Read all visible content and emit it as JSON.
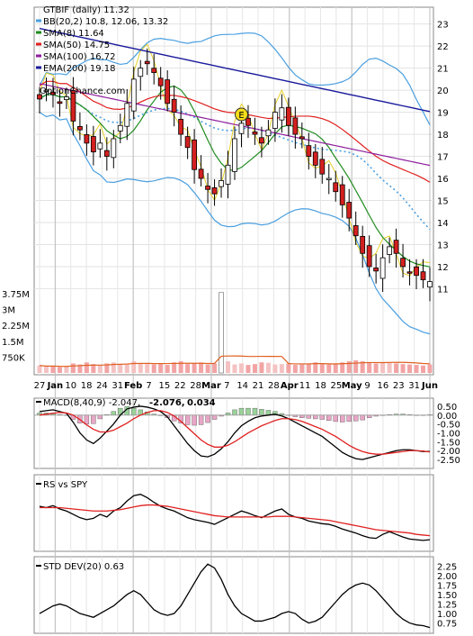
{
  "chart_data": [
    {
      "type": "candlestick",
      "title": "GTBIF (daily) 11.32",
      "watermark": "OptionChance.com",
      "y_ticks": [
        11,
        12,
        13,
        14,
        15,
        16,
        17,
        18,
        19,
        20,
        21,
        22,
        23
      ],
      "ylim": [
        10.2,
        23.6
      ],
      "x_ticks": [
        "27",
        "Jan",
        "10",
        "18",
        "24",
        "31",
        "Feb",
        "7",
        "15",
        "22",
        "28",
        "Mar",
        "7",
        "14",
        "21",
        "28",
        "Apr",
        "11",
        "18",
        "25",
        "May",
        "9",
        "16",
        "23",
        "31",
        "Jun"
      ],
      "grid": true,
      "legend_position": "top-left",
      "legend": [
        {
          "label": "BB(20,2) 10.8, 12.06, 13.32",
          "color": "#4a9fe0"
        },
        {
          "label": "SMA(8) 11.64",
          "color": "#1e8c1e"
        },
        {
          "label": "SMA(50) 14.75",
          "color": "#e02020"
        },
        {
          "label": "SMA(100) 16.72",
          "color": "#8e1e9e"
        },
        {
          "label": "EMA(200) 19.18",
          "color": "#1a1a9c"
        }
      ],
      "annotation": "E",
      "annotation_close_approx": 18.9,
      "series": [
        {
          "name": "Close",
          "color": "#000000",
          "values": [
            19.6,
            20.0,
            19.8,
            19.4,
            19.7,
            18.6,
            18.2,
            17.6,
            17.2,
            17.6,
            17.0,
            17.8,
            18.4,
            19.4,
            20.5,
            21.0,
            21.2,
            20.8,
            20.2,
            19.4,
            19.0,
            18.0,
            17.4,
            16.4,
            16.0,
            15.5,
            15.3,
            15.9,
            16.6,
            17.8,
            18.5,
            18.4,
            18.0,
            17.6,
            18.2,
            19.0,
            19.2,
            18.4,
            18.0,
            17.8,
            17.0,
            16.6,
            16.2,
            16.0,
            15.4,
            14.8,
            14.2,
            13.4,
            12.6,
            12.0,
            11.8,
            12.4,
            12.9,
            12.6,
            12.0,
            11.7,
            11.6,
            11.4,
            11.32
          ]
        },
        {
          "name": "Volume",
          "color": "#f2a4a4",
          "values": [
            0.35,
            0.3,
            0.32,
            0.28,
            0.3,
            0.45,
            0.4,
            0.5,
            0.42,
            0.38,
            0.45,
            0.5,
            0.4,
            0.42,
            0.55,
            0.48,
            0.42,
            0.4,
            0.45,
            0.38,
            0.5,
            0.55,
            0.42,
            0.45,
            0.5,
            0.4,
            0.45,
            3.8,
            0.55,
            0.4,
            0.45,
            0.38,
            0.42,
            0.5,
            0.48,
            0.4,
            0.42,
            0.45,
            0.38,
            0.4,
            0.45,
            0.5,
            0.42,
            0.4,
            0.45,
            0.5,
            0.55,
            0.6,
            0.55,
            0.5,
            0.45,
            0.48,
            0.5,
            0.45,
            0.42,
            0.4,
            0.38,
            0.35,
            0.4
          ]
        }
      ],
      "volume_ticks": [
        "750K",
        "1.5M",
        "2.25M",
        "3M",
        "3.75M"
      ]
    },
    {
      "type": "line",
      "title": "MACD(8,40,9) -2.047,",
      "values_label": [
        "-2.076,",
        "0.034"
      ],
      "values_label_colors": [
        "#e02020",
        "#1a1a9c"
      ],
      "y_ticks": [
        "0.50",
        "0.00",
        "-0.50",
        "-1.00",
        "-1.50",
        "-2.00",
        "-2.50"
      ],
      "ylim": [
        -2.8,
        0.65
      ],
      "series": [
        {
          "name": "MACD",
          "color": "#000000",
          "values": [
            0.2,
            0.25,
            0.3,
            0.2,
            0.1,
            -0.4,
            -1.0,
            -1.4,
            -1.6,
            -1.3,
            -0.9,
            -0.5,
            0.0,
            0.35,
            0.45,
            0.5,
            0.45,
            0.35,
            0.2,
            -0.1,
            -0.6,
            -1.1,
            -1.6,
            -2.0,
            -2.3,
            -2.35,
            -2.2,
            -1.9,
            -1.5,
            -1.0,
            -0.6,
            -0.35,
            -0.15,
            -0.05,
            0.0,
            0.05,
            -0.05,
            -0.2,
            -0.4,
            -0.6,
            -0.8,
            -1.0,
            -1.2,
            -1.5,
            -1.8,
            -2.1,
            -2.3,
            -2.45,
            -2.5,
            -2.4,
            -2.3,
            -2.2,
            -2.1,
            -2.0,
            -1.95,
            -1.95,
            -2.0,
            -2.05,
            -2.047
          ]
        },
        {
          "name": "Signal",
          "color": "#e02020",
          "values": [
            0.0,
            0.05,
            0.1,
            0.15,
            0.12,
            0.0,
            -0.25,
            -0.55,
            -0.8,
            -0.95,
            -0.95,
            -0.85,
            -0.65,
            -0.45,
            -0.2,
            0.0,
            0.15,
            0.25,
            0.25,
            0.15,
            -0.05,
            -0.35,
            -0.7,
            -1.05,
            -1.4,
            -1.65,
            -1.8,
            -1.8,
            -1.7,
            -1.5,
            -1.25,
            -1.0,
            -0.8,
            -0.6,
            -0.45,
            -0.3,
            -0.2,
            -0.2,
            -0.25,
            -0.35,
            -0.5,
            -0.65,
            -0.8,
            -1.0,
            -1.2,
            -1.45,
            -1.7,
            -1.9,
            -2.05,
            -2.15,
            -2.2,
            -2.2,
            -2.15,
            -2.1,
            -2.05,
            -2.0,
            -2.0,
            -2.02,
            -2.076
          ]
        },
        {
          "name": "Histogram",
          "color": "#5cb85c",
          "values": [
            0.2,
            0.2,
            0.2,
            0.05,
            -0.02,
            -0.4,
            -0.75,
            -0.85,
            -0.8,
            -0.35,
            0.05,
            0.35,
            0.65,
            0.8,
            0.65,
            0.5,
            0.3,
            0.1,
            -0.05,
            -0.25,
            -0.55,
            -0.75,
            -0.9,
            -0.95,
            -0.9,
            -0.7,
            -0.4,
            -0.1,
            0.2,
            0.5,
            0.65,
            0.65,
            0.65,
            0.55,
            0.45,
            0.35,
            0.15,
            0.0,
            -0.15,
            -0.25,
            -0.3,
            -0.35,
            -0.4,
            -0.5,
            -0.6,
            -0.65,
            -0.6,
            -0.55,
            -0.45,
            -0.25,
            -0.1,
            0.0,
            0.05,
            0.1,
            0.1,
            0.05,
            0.0,
            -0.03,
            0.034
          ]
        }
      ]
    },
    {
      "type": "line",
      "title": "RS vs SPY",
      "series": [
        {
          "name": "RS",
          "color": "#000000",
          "values": [
            0.62,
            0.6,
            0.63,
            0.58,
            0.55,
            0.5,
            0.45,
            0.42,
            0.44,
            0.5,
            0.46,
            0.55,
            0.6,
            0.7,
            0.78,
            0.8,
            0.75,
            0.68,
            0.62,
            0.58,
            0.55,
            0.5,
            0.45,
            0.42,
            0.4,
            0.38,
            0.35,
            0.4,
            0.45,
            0.5,
            0.55,
            0.52,
            0.48,
            0.45,
            0.5,
            0.55,
            0.58,
            0.5,
            0.46,
            0.44,
            0.4,
            0.38,
            0.36,
            0.35,
            0.32,
            0.28,
            0.25,
            0.22,
            0.18,
            0.15,
            0.14,
            0.2,
            0.24,
            0.2,
            0.16,
            0.13,
            0.12,
            0.11,
            0.12
          ]
        },
        {
          "name": "Average",
          "color": "#e02020",
          "values": [
            0.6,
            0.6,
            0.6,
            0.6,
            0.59,
            0.58,
            0.57,
            0.56,
            0.55,
            0.55,
            0.55,
            0.56,
            0.57,
            0.59,
            0.61,
            0.63,
            0.64,
            0.64,
            0.63,
            0.62,
            0.6,
            0.58,
            0.56,
            0.54,
            0.52,
            0.5,
            0.48,
            0.47,
            0.46,
            0.46,
            0.46,
            0.46,
            0.46,
            0.46,
            0.46,
            0.47,
            0.47,
            0.47,
            0.46,
            0.45,
            0.44,
            0.43,
            0.42,
            0.41,
            0.39,
            0.37,
            0.35,
            0.33,
            0.31,
            0.29,
            0.27,
            0.26,
            0.25,
            0.24,
            0.23,
            0.22,
            0.2,
            0.19,
            0.18
          ]
        }
      ]
    },
    {
      "type": "line",
      "title": "STD DEV(20) 0.63",
      "y_ticks": [
        "0.75",
        "1.00",
        "1.25",
        "1.50",
        "1.75",
        "2.00",
        "2.25"
      ],
      "ylim": [
        0.55,
        2.4
      ],
      "series": [
        {
          "name": "STD DEV",
          "color": "#000000",
          "values": [
            1.0,
            1.1,
            1.2,
            1.25,
            1.2,
            1.1,
            1.0,
            0.95,
            0.9,
            1.0,
            1.1,
            1.2,
            1.35,
            1.5,
            1.6,
            1.5,
            1.3,
            1.1,
            1.0,
            0.95,
            1.0,
            1.2,
            1.5,
            1.8,
            2.1,
            2.3,
            2.2,
            1.9,
            1.5,
            1.2,
            1.0,
            0.9,
            0.8,
            0.8,
            0.85,
            0.9,
            1.0,
            1.05,
            1.0,
            0.85,
            0.75,
            0.8,
            0.9,
            1.1,
            1.3,
            1.5,
            1.65,
            1.75,
            1.8,
            1.75,
            1.6,
            1.4,
            1.2,
            1.0,
            0.85,
            0.75,
            0.7,
            0.68,
            0.63
          ]
        }
      ]
    }
  ]
}
